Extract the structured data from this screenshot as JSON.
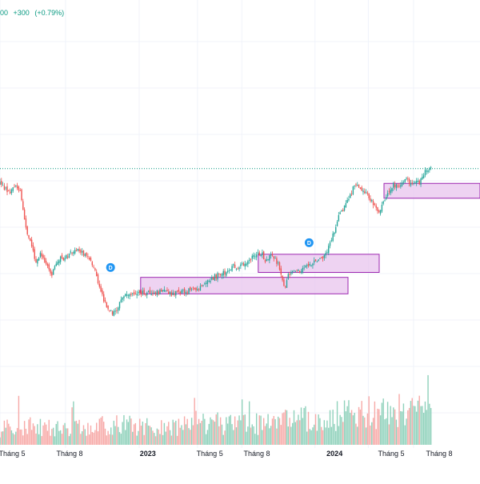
{
  "header": {
    "last_price_fragment": "00",
    "change": "+300",
    "change_pct": "(+0.79%)"
  },
  "colors": {
    "up": "#26a69a",
    "down": "#ef5350",
    "vol_up": "#8fd1bb",
    "vol_down": "#f7a9a7",
    "zone_fill": "#e8c4ee",
    "zone_stroke": "#9c27b0",
    "price_line": "#089981",
    "marker": "#2196f3",
    "grid": "#f0f3fa"
  },
  "chart_data": {
    "type": "candlestick",
    "x_ticks": [
      {
        "label": "Tháng 5",
        "major": false,
        "t": 0.025
      },
      {
        "label": "Tháng 8",
        "major": false,
        "t": 0.145
      },
      {
        "label": "2023",
        "major": true,
        "t": 0.308
      },
      {
        "label": "Tháng 5",
        "major": false,
        "t": 0.437
      },
      {
        "label": "Tháng 8",
        "major": false,
        "t": 0.535
      },
      {
        "label": "2024",
        "major": true,
        "t": 0.697
      },
      {
        "label": "Tháng 5",
        "major": false,
        "t": 0.815
      },
      {
        "label": "Tháng 8",
        "major": false,
        "t": 0.915
      }
    ],
    "price_keypoints": [
      [
        0.0,
        0.79
      ],
      [
        0.01,
        0.76
      ],
      [
        0.02,
        0.73
      ],
      [
        0.035,
        0.79
      ],
      [
        0.045,
        0.74
      ],
      [
        0.06,
        0.47
      ],
      [
        0.07,
        0.42
      ],
      [
        0.08,
        0.3
      ],
      [
        0.09,
        0.38
      ],
      [
        0.1,
        0.3
      ],
      [
        0.115,
        0.24
      ],
      [
        0.13,
        0.33
      ],
      [
        0.145,
        0.34
      ],
      [
        0.16,
        0.38
      ],
      [
        0.18,
        0.38
      ],
      [
        0.195,
        0.34
      ],
      [
        0.205,
        0.29
      ],
      [
        0.215,
        0.22
      ],
      [
        0.225,
        0.12
      ],
      [
        0.24,
        0.02
      ],
      [
        0.255,
        0.0
      ],
      [
        0.27,
        0.1
      ],
      [
        0.29,
        0.12
      ],
      [
        0.31,
        0.13
      ],
      [
        0.33,
        0.12
      ],
      [
        0.345,
        0.13
      ],
      [
        0.36,
        0.14
      ],
      [
        0.38,
        0.12
      ],
      [
        0.4,
        0.13
      ],
      [
        0.42,
        0.14
      ],
      [
        0.44,
        0.16
      ],
      [
        0.46,
        0.2
      ],
      [
        0.48,
        0.23
      ],
      [
        0.5,
        0.25
      ],
      [
        0.515,
        0.29
      ],
      [
        0.53,
        0.28
      ],
      [
        0.55,
        0.32
      ],
      [
        0.565,
        0.35
      ],
      [
        0.58,
        0.37
      ],
      [
        0.59,
        0.31
      ],
      [
        0.6,
        0.36
      ],
      [
        0.615,
        0.31
      ],
      [
        0.63,
        0.15
      ],
      [
        0.64,
        0.24
      ],
      [
        0.66,
        0.25
      ],
      [
        0.675,
        0.29
      ],
      [
        0.69,
        0.3
      ],
      [
        0.71,
        0.33
      ],
      [
        0.725,
        0.38
      ],
      [
        0.735,
        0.45
      ],
      [
        0.75,
        0.58
      ],
      [
        0.765,
        0.66
      ],
      [
        0.775,
        0.7
      ],
      [
        0.785,
        0.79
      ],
      [
        0.8,
        0.74
      ],
      [
        0.815,
        0.72
      ],
      [
        0.83,
        0.65
      ],
      [
        0.84,
        0.62
      ],
      [
        0.855,
        0.7
      ],
      [
        0.87,
        0.78
      ],
      [
        0.885,
        0.78
      ],
      [
        0.9,
        0.82
      ],
      [
        0.915,
        0.78
      ],
      [
        0.93,
        0.8
      ],
      [
        0.94,
        0.85
      ],
      [
        0.95,
        0.88
      ]
    ],
    "last_value": 0.88,
    "zones": [
      {
        "t0": 0.293,
        "t1": 0.725,
        "lo": 0.12,
        "hi": 0.22
      },
      {
        "t0": 0.538,
        "t1": 0.79,
        "lo": 0.25,
        "hi": 0.36
      },
      {
        "t0": 0.8,
        "t1": 1.0,
        "lo": 0.7,
        "hi": 0.79
      }
    ],
    "markers": [
      {
        "label": "D",
        "t": 0.245,
        "v": 0.28
      },
      {
        "label": "D",
        "t": 0.685,
        "v": 0.43
      }
    ],
    "volume_profile": [
      [
        0.0,
        0.4
      ],
      [
        0.05,
        0.5
      ],
      [
        0.1,
        0.45
      ],
      [
        0.15,
        0.4
      ],
      [
        0.2,
        0.45
      ],
      [
        0.25,
        0.5
      ],
      [
        0.3,
        0.5
      ],
      [
        0.35,
        0.4
      ],
      [
        0.4,
        0.5
      ],
      [
        0.45,
        0.6
      ],
      [
        0.5,
        0.5
      ],
      [
        0.55,
        0.5
      ],
      [
        0.6,
        0.55
      ],
      [
        0.65,
        0.6
      ],
      [
        0.7,
        0.7
      ],
      [
        0.75,
        0.75
      ],
      [
        0.8,
        0.8
      ],
      [
        0.85,
        0.9
      ],
      [
        0.9,
        0.85
      ],
      [
        0.95,
        0.8
      ]
    ],
    "grid": true
  }
}
